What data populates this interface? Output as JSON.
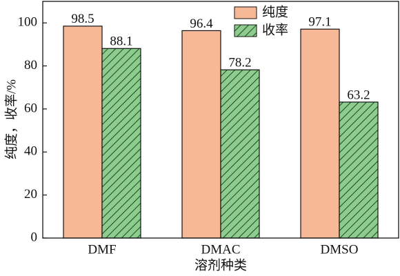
{
  "chart_data": {
    "type": "bar",
    "xlabel": "溶剂种类",
    "ylabel": "纯度，收率/%",
    "categories": [
      "DMF",
      "DMAC",
      "DMSO"
    ],
    "series": [
      {
        "name": "纯度",
        "color": "#f6b896",
        "values": [
          98.5,
          96.4,
          97.1
        ]
      },
      {
        "name": "收率",
        "color": "#8ecb8e",
        "hatch": true,
        "values": [
          88.1,
          78.2,
          63.2
        ]
      }
    ],
    "ylim": [
      0,
      110
    ],
    "yticks": [
      0,
      20,
      40,
      60,
      80,
      100
    ],
    "legend": "upper right"
  }
}
